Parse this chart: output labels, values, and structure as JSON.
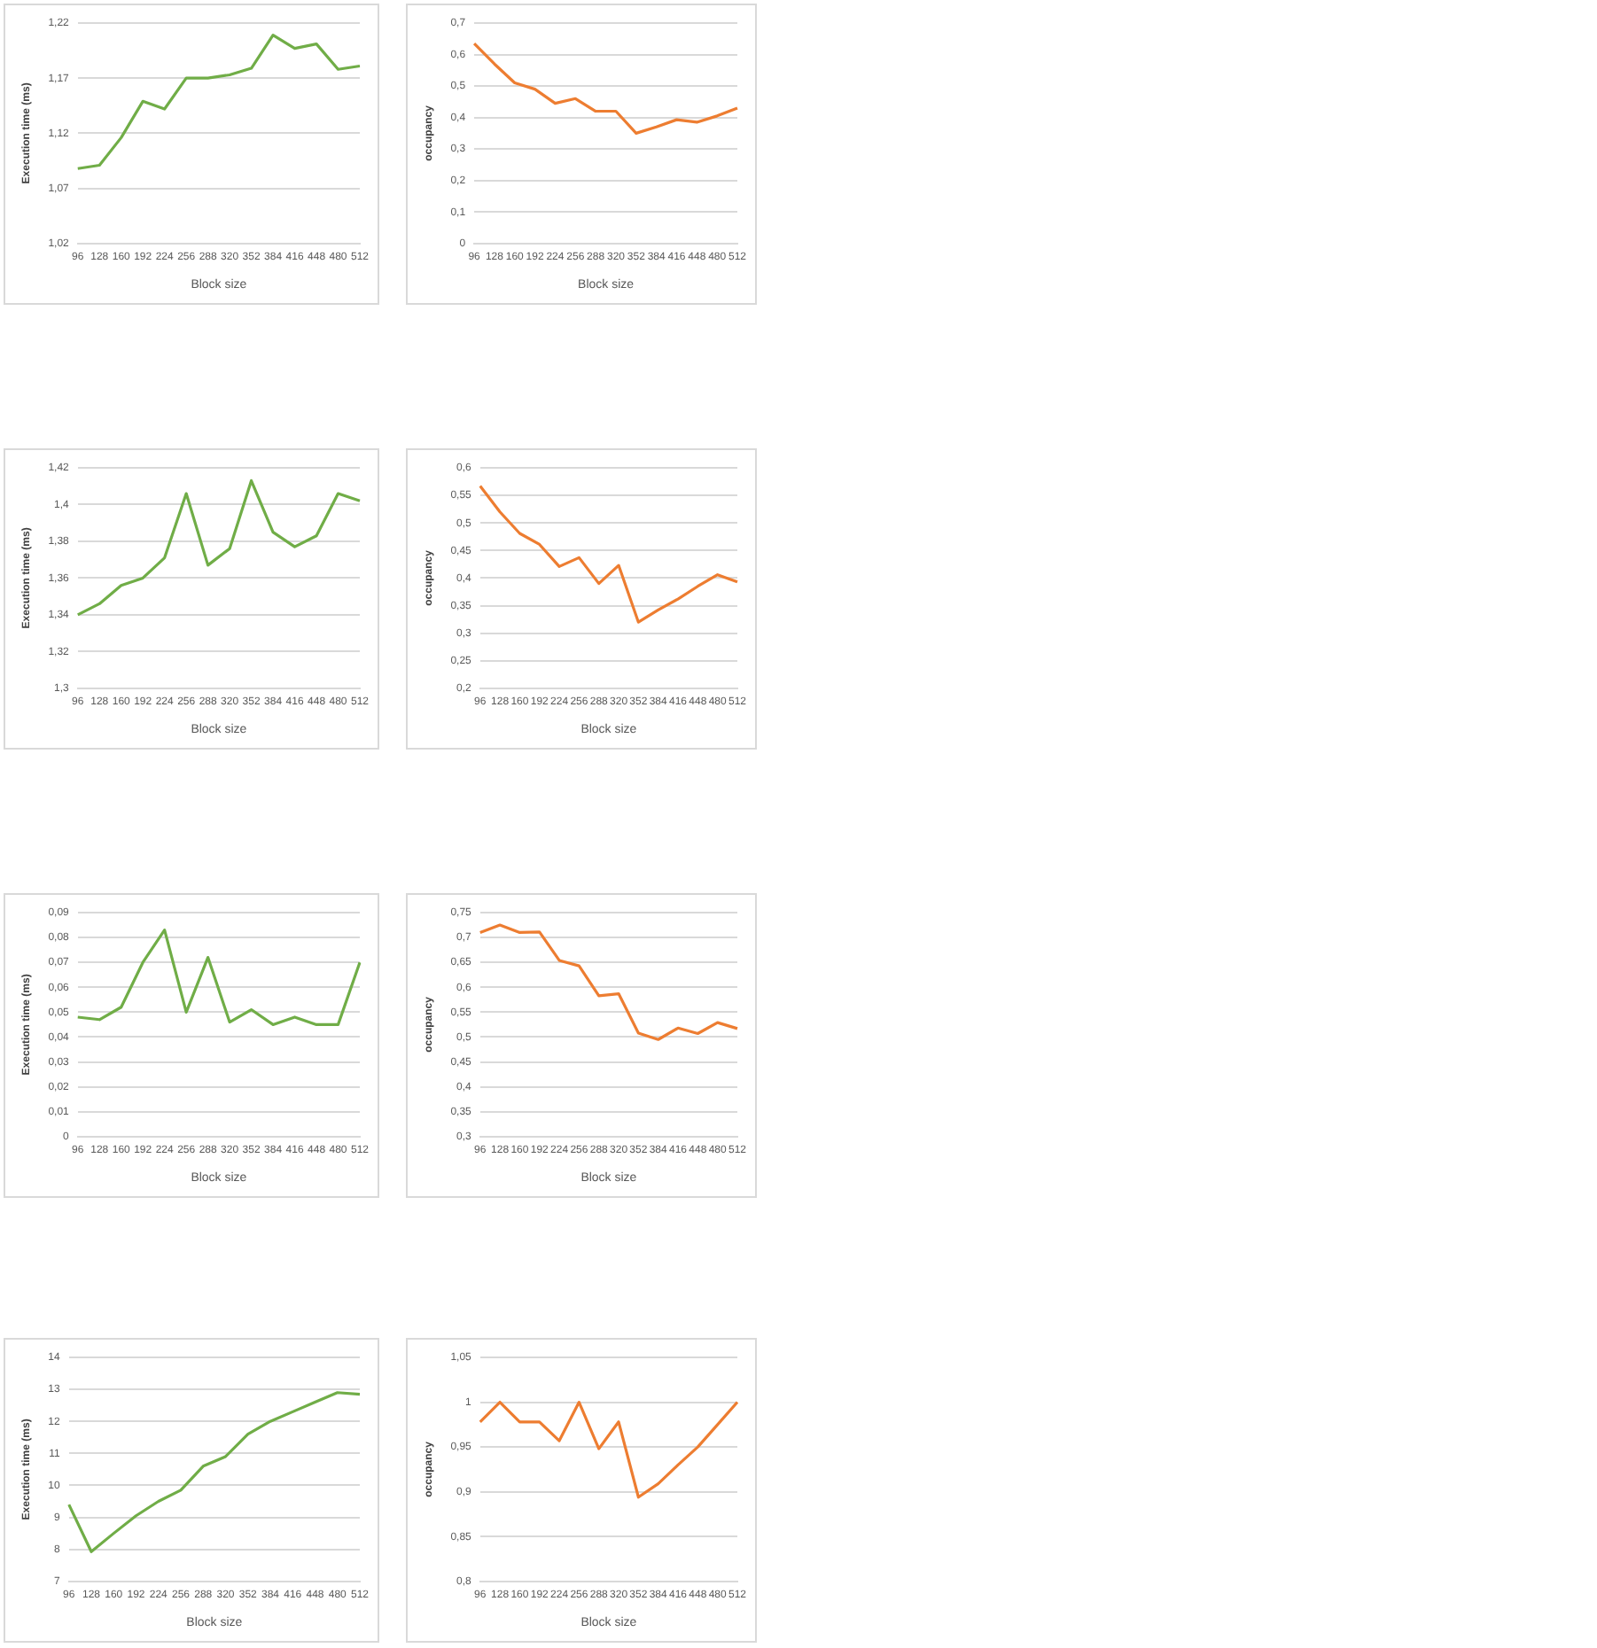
{
  "chart_data": [
    {
      "type": "line",
      "xlabel": "Block size",
      "ylabel": "Execution time (ms)",
      "categories": [
        "96",
        "128",
        "160",
        "192",
        "224",
        "256",
        "288",
        "320",
        "352",
        "384",
        "416",
        "448",
        "480",
        "512"
      ],
      "series": [
        {
          "color": "#70ad47",
          "values": [
            1.088,
            1.091,
            1.116,
            1.149,
            1.142,
            1.17,
            1.17,
            1.173,
            1.179,
            1.209,
            1.197,
            1.201,
            1.178,
            1.181
          ]
        }
      ],
      "ylim": [
        1.02,
        1.22
      ],
      "yticks": [
        {
          "value": 1.02,
          "label": "1,02"
        },
        {
          "value": 1.07,
          "label": "1,07"
        },
        {
          "value": 1.12,
          "label": "1,12"
        },
        {
          "value": 1.17,
          "label": "1,17"
        },
        {
          "value": 1.22,
          "label": "1,22"
        }
      ],
      "grid": "y",
      "legend": false,
      "marker": "none"
    },
    {
      "type": "line",
      "xlabel": "Block size",
      "ylabel": "occupancy",
      "categories": [
        "96",
        "128",
        "160",
        "192",
        "224",
        "256",
        "288",
        "320",
        "352",
        "384",
        "416",
        "448",
        "480",
        "512"
      ],
      "series": [
        {
          "color": "#ed7d31",
          "values": [
            0.635,
            0.57,
            0.51,
            0.49,
            0.445,
            0.46,
            0.42,
            0.42,
            0.35,
            0.37,
            0.393,
            0.385,
            0.405,
            0.43
          ]
        }
      ],
      "ylim": [
        0,
        0.7
      ],
      "yticks": [
        0,
        {
          "value": 0.1,
          "label": "0,1"
        },
        {
          "value": 0.2,
          "label": "0,2"
        },
        {
          "value": 0.3,
          "label": "0,3"
        },
        {
          "value": 0.4,
          "label": "0,4"
        },
        {
          "value": 0.5,
          "label": "0,5"
        },
        {
          "value": 0.6,
          "label": "0,6"
        },
        {
          "value": 0.7,
          "label": "0,7"
        }
      ],
      "grid": "y",
      "legend": false,
      "marker": "none"
    },
    {
      "type": "line",
      "xlabel": "Block size",
      "ylabel": "Execution time (ms)",
      "categories": [
        "96",
        "128",
        "160",
        "192",
        "224",
        "256",
        "288",
        "320",
        "352",
        "384",
        "416",
        "448",
        "480",
        "512"
      ],
      "series": [
        {
          "color": "#70ad47",
          "values": [
            1.34,
            1.346,
            1.356,
            1.36,
            1.371,
            1.406,
            1.367,
            1.376,
            1.413,
            1.385,
            1.377,
            1.383,
            1.406,
            1.402
          ]
        }
      ],
      "ylim": [
        1.3,
        1.42
      ],
      "yticks": [
        {
          "value": 1.3,
          "label": "1,3"
        },
        {
          "value": 1.32,
          "label": "1,32"
        },
        {
          "value": 1.34,
          "label": "1,34"
        },
        {
          "value": 1.36,
          "label": "1,36"
        },
        {
          "value": 1.38,
          "label": "1,38"
        },
        {
          "value": 1.4,
          "label": "1,4"
        },
        {
          "value": 1.42,
          "label": "1,42"
        }
      ],
      "grid": "y",
      "legend": false,
      "marker": "none"
    },
    {
      "type": "line",
      "xlabel": "Block size",
      "ylabel": "occupancy",
      "categories": [
        "96",
        "128",
        "160",
        "192",
        "224",
        "256",
        "288",
        "320",
        "352",
        "384",
        "416",
        "448",
        "480",
        "512"
      ],
      "series": [
        {
          "color": "#ed7d31",
          "values": [
            0.567,
            0.52,
            0.481,
            0.461,
            0.421,
            0.437,
            0.39,
            0.423,
            0.32,
            0.342,
            0.362,
            0.385,
            0.406,
            0.393
          ]
        }
      ],
      "ylim": [
        0.2,
        0.6
      ],
      "yticks": [
        {
          "value": 0.2,
          "label": "0,2"
        },
        {
          "value": 0.25,
          "label": "0,25"
        },
        {
          "value": 0.3,
          "label": "0,3"
        },
        {
          "value": 0.35,
          "label": "0,35"
        },
        {
          "value": 0.4,
          "label": "0,4"
        },
        {
          "value": 0.45,
          "label": "0,45"
        },
        {
          "value": 0.5,
          "label": "0,5"
        },
        {
          "value": 0.55,
          "label": "0,55"
        },
        {
          "value": 0.6,
          "label": "0,6"
        }
      ],
      "grid": "y",
      "legend": false,
      "marker": "none"
    },
    {
      "type": "line",
      "xlabel": "Block size",
      "ylabel": "Execution time (ms)",
      "categories": [
        "96",
        "128",
        "160",
        "192",
        "224",
        "256",
        "288",
        "320",
        "352",
        "384",
        "416",
        "448",
        "480",
        "512"
      ],
      "series": [
        {
          "color": "#70ad47",
          "values": [
            0.048,
            0.047,
            0.052,
            0.07,
            0.083,
            0.05,
            0.072,
            0.046,
            0.051,
            0.045,
            0.048,
            0.045,
            0.045,
            0.07
          ]
        }
      ],
      "ylim": [
        0,
        0.09
      ],
      "yticks": [
        0,
        {
          "value": 0.01,
          "label": "0,01"
        },
        {
          "value": 0.02,
          "label": "0,02"
        },
        {
          "value": 0.03,
          "label": "0,03"
        },
        {
          "value": 0.04,
          "label": "0,04"
        },
        {
          "value": 0.05,
          "label": "0,05"
        },
        {
          "value": 0.06,
          "label": "0,06"
        },
        {
          "value": 0.07,
          "label": "0,07"
        },
        {
          "value": 0.08,
          "label": "0,08"
        },
        {
          "value": 0.09,
          "label": "0,09"
        }
      ],
      "grid": "y",
      "legend": false,
      "marker": "none"
    },
    {
      "type": "line",
      "xlabel": "Block size",
      "ylabel": "occupancy",
      "categories": [
        "96",
        "128",
        "160",
        "192",
        "224",
        "256",
        "288",
        "320",
        "352",
        "384",
        "416",
        "448",
        "480",
        "512"
      ],
      "series": [
        {
          "color": "#ed7d31",
          "values": [
            0.71,
            0.725,
            0.71,
            0.711,
            0.654,
            0.643,
            0.583,
            0.587,
            0.508,
            0.495,
            0.518,
            0.507,
            0.529,
            0.517
          ]
        }
      ],
      "ylim": [
        0.3,
        0.75
      ],
      "yticks": [
        {
          "value": 0.3,
          "label": "0,3"
        },
        {
          "value": 0.35,
          "label": "0,35"
        },
        {
          "value": 0.4,
          "label": "0,4"
        },
        {
          "value": 0.45,
          "label": "0,45"
        },
        {
          "value": 0.5,
          "label": "0,5"
        },
        {
          "value": 0.55,
          "label": "0,55"
        },
        {
          "value": 0.6,
          "label": "0,6"
        },
        {
          "value": 0.65,
          "label": "0,65"
        },
        {
          "value": 0.7,
          "label": "0,7"
        },
        {
          "value": 0.75,
          "label": "0,75"
        }
      ],
      "grid": "y",
      "legend": false,
      "marker": "none"
    },
    {
      "type": "line",
      "xlabel": "Block size",
      "ylabel": "Execution time (ms)",
      "categories": [
        "96",
        "128",
        "160",
        "192",
        "224",
        "256",
        "288",
        "320",
        "352",
        "384",
        "416",
        "448",
        "480",
        "512"
      ],
      "series": [
        {
          "color": "#70ad47",
          "values": [
            9.4,
            7.93,
            8.5,
            9.05,
            9.5,
            9.85,
            10.6,
            10.9,
            11.6,
            12.0,
            12.3,
            12.6,
            12.9,
            12.85
          ]
        }
      ],
      "ylim": [
        7,
        14
      ],
      "yticks": [
        7,
        8,
        9,
        10,
        11,
        12,
        13,
        14
      ],
      "grid": "y",
      "legend": false,
      "marker": "none"
    },
    {
      "type": "line",
      "xlabel": "Block size",
      "ylabel": "occupancy",
      "categories": [
        "96",
        "128",
        "160",
        "192",
        "224",
        "256",
        "288",
        "320",
        "352",
        "384",
        "416",
        "448",
        "480",
        "512"
      ],
      "series": [
        {
          "color": "#ed7d31",
          "values": [
            0.978,
            1.0,
            0.978,
            0.978,
            0.957,
            1.0,
            0.948,
            0.978,
            0.894,
            0.909,
            0.93,
            0.95,
            0.975,
            1.0
          ]
        }
      ],
      "ylim": [
        0.8,
        1.05
      ],
      "yticks": [
        {
          "value": 0.8,
          "label": "0,8"
        },
        {
          "value": 0.85,
          "label": "0,85"
        },
        {
          "value": 0.9,
          "label": "0,9"
        },
        {
          "value": 0.95,
          "label": "0,95"
        },
        1,
        {
          "value": 1.05,
          "label": "1,05"
        }
      ],
      "grid": "y",
      "legend": false,
      "marker": "none"
    }
  ]
}
